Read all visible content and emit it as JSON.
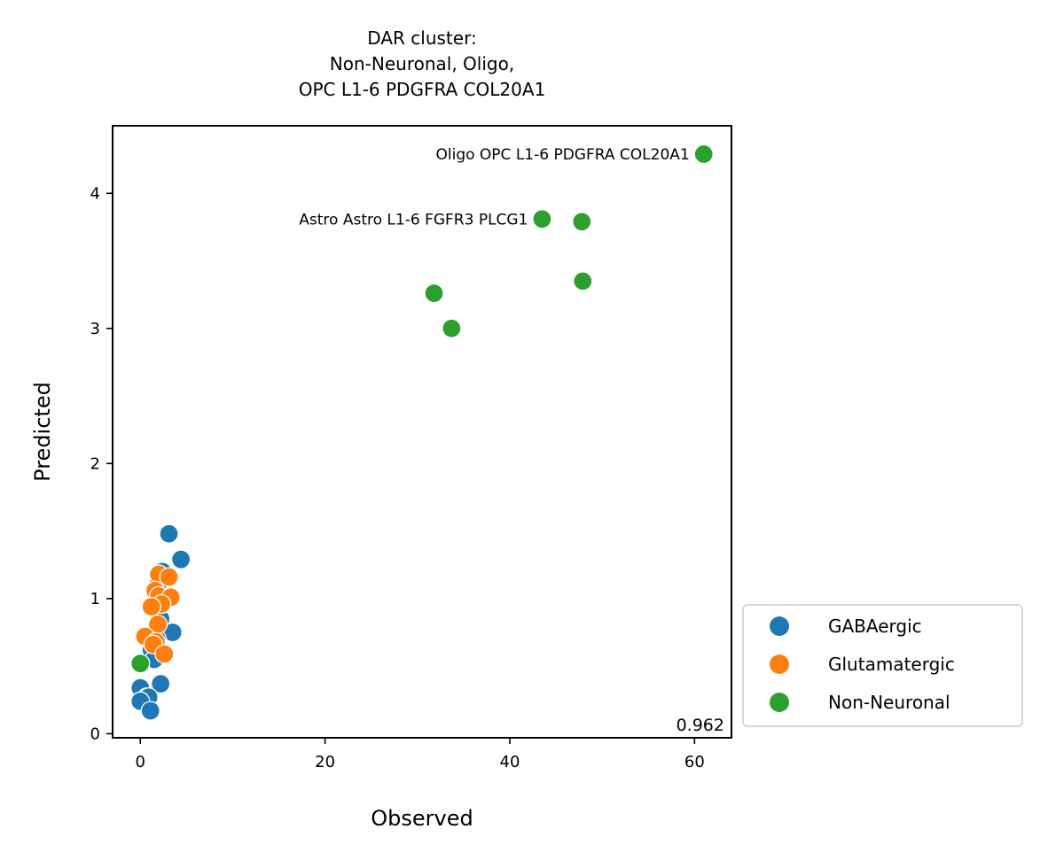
{
  "chart_data": {
    "type": "scatter",
    "title": [
      "DAR cluster:",
      "Non-Neuronal, Oligo,",
      "OPC L1-6 PDGFRA COL20A1"
    ],
    "xlabel": "Observed",
    "ylabel": "Predicted",
    "xlim": [
      -3,
      64
    ],
    "ylim": [
      -0.03,
      4.5
    ],
    "xticks": [
      0,
      20,
      40,
      60
    ],
    "yticks": [
      0,
      1,
      2,
      3,
      4
    ],
    "legend_position": "outside-lower-right",
    "corner_annotation": "0.962",
    "series": [
      {
        "name": "GABAergic",
        "color": "#1f77b4",
        "points": [
          [
            3.1,
            1.48
          ],
          [
            4.4,
            1.29
          ],
          [
            2.4,
            1.2
          ],
          [
            2.0,
            1.12
          ],
          [
            1.6,
            1.05
          ],
          [
            1.3,
            0.95
          ],
          [
            2.2,
            0.85
          ],
          [
            3.5,
            0.75
          ],
          [
            1.8,
            0.7
          ],
          [
            1.2,
            0.62
          ],
          [
            1.5,
            0.55
          ],
          [
            2.2,
            0.37
          ],
          [
            0.0,
            0.34
          ],
          [
            0.7,
            0.27
          ],
          [
            0.9,
            0.27
          ],
          [
            0.0,
            0.24
          ],
          [
            1.1,
            0.17
          ]
        ]
      },
      {
        "name": "Glutamatergic",
        "color": "#ff7f0e",
        "points": [
          [
            2.0,
            1.18
          ],
          [
            3.1,
            1.16
          ],
          [
            1.6,
            1.06
          ],
          [
            2.0,
            1.02
          ],
          [
            3.3,
            1.01
          ],
          [
            2.3,
            0.96
          ],
          [
            1.2,
            0.94
          ],
          [
            1.9,
            0.81
          ],
          [
            0.5,
            0.72
          ],
          [
            1.7,
            0.68
          ],
          [
            1.4,
            0.66
          ],
          [
            2.6,
            0.59
          ]
        ]
      },
      {
        "name": "Non-Neuronal",
        "color": "#2ca02c",
        "points": [
          [
            61.0,
            4.29
          ],
          [
            43.5,
            3.81
          ],
          [
            47.8,
            3.79
          ],
          [
            47.9,
            3.35
          ],
          [
            31.8,
            3.26
          ],
          [
            33.7,
            3.0
          ],
          [
            0.0,
            0.52
          ]
        ]
      }
    ],
    "annotations": [
      {
        "text": "Oligo OPC L1-6 PDGFRA COL20A1",
        "x": 61.0,
        "y": 4.29
      },
      {
        "text": "Astro Astro L1-6 FGFR3 PLCG1",
        "x": 43.5,
        "y": 3.81
      }
    ]
  }
}
